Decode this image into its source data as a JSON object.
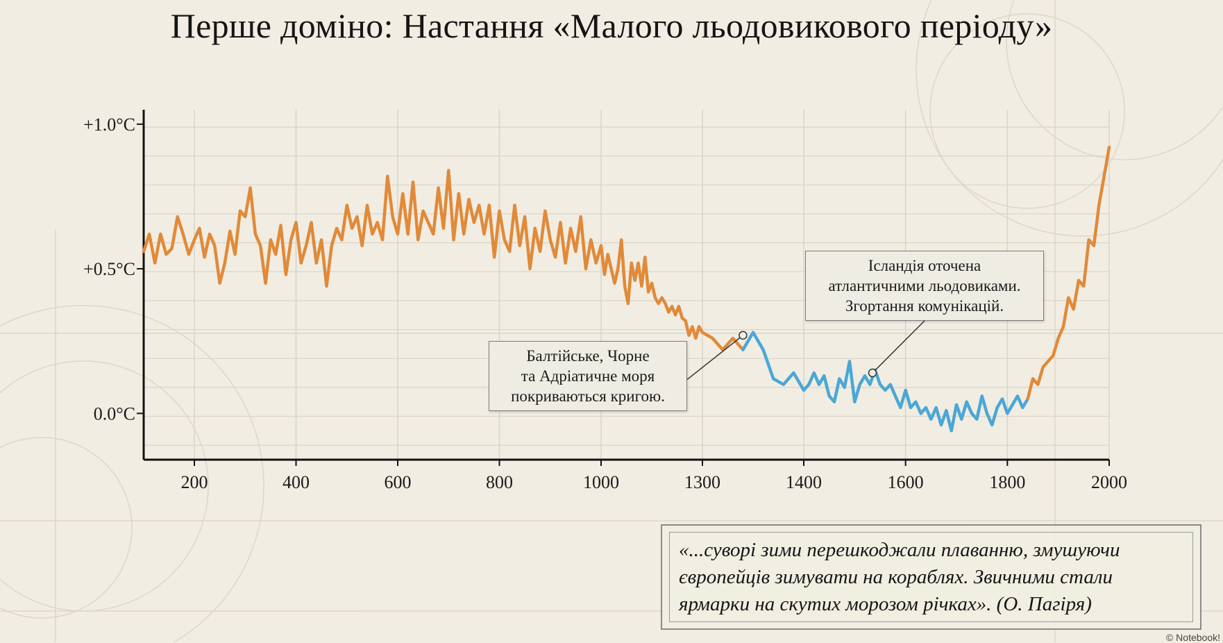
{
  "title": "Перше доміно: Настання «Малого льодовикового періоду»",
  "colors": {
    "warm": "#e08a3a",
    "cold": "#4aa7d6",
    "axis": "#111111",
    "grid": "#d9d4c7"
  },
  "chart_data": {
    "type": "line",
    "title": "Перше доміно: Настання «Малого льодовикового періоду»",
    "xlabel": "",
    "ylabel": "",
    "xlim": [
      110,
      2000
    ],
    "ylim": [
      -0.16,
      1.05
    ],
    "x_tick_labels": [
      "200",
      "400",
      "600",
      "800",
      "1000",
      "1300",
      "1400",
      "1600",
      "1800",
      "2000"
    ],
    "y_tick_labels": [
      "+1.0°C",
      "+0.5°C",
      "0.0°C"
    ],
    "y_tick_values": [
      1.0,
      0.5,
      0.0
    ],
    "grid": true,
    "legend": "none",
    "series": [
      {
        "color": "#e08a3a",
        "x": [
          110,
          120,
          130,
          140,
          150,
          160,
          170,
          180,
          190,
          200,
          210,
          220,
          230,
          240,
          250,
          260,
          270,
          280,
          290,
          300,
          310,
          320,
          330,
          340,
          350,
          360,
          370,
          380,
          390,
          400,
          410,
          420,
          430,
          440,
          450,
          460,
          470,
          480,
          490,
          500,
          510,
          520,
          530,
          540,
          550,
          560,
          570,
          580,
          590,
          600,
          610,
          620,
          630,
          640,
          650,
          660,
          670,
          680,
          690,
          700,
          710,
          720,
          730,
          740,
          750,
          760,
          770,
          780,
          790,
          800,
          810,
          820,
          830,
          840,
          850,
          860,
          870,
          880,
          890,
          900,
          910,
          920,
          930,
          940,
          950,
          960,
          970,
          980,
          990,
          1000,
          1010,
          1020,
          1030,
          1040,
          1050,
          1060,
          1070,
          1080,
          1090,
          1100,
          1110,
          1120,
          1130,
          1140,
          1150,
          1160,
          1170,
          1180,
          1190,
          1200,
          1210,
          1220,
          1230,
          1240,
          1250,
          1260,
          1270,
          1280,
          1290,
          1300,
          1310,
          1320,
          1330,
          1340
        ],
        "y": [
          0.56,
          0.62,
          0.52,
          0.62,
          0.55,
          0.57,
          0.68,
          0.62,
          0.55,
          0.6,
          0.64,
          0.54,
          0.62,
          0.58,
          0.45,
          0.52,
          0.63,
          0.55,
          0.7,
          0.68,
          0.78,
          0.62,
          0.58,
          0.45,
          0.6,
          0.55,
          0.65,
          0.48,
          0.6,
          0.66,
          0.52,
          0.58,
          0.66,
          0.52,
          0.6,
          0.44,
          0.58,
          0.64,
          0.6,
          0.72,
          0.64,
          0.68,
          0.58,
          0.72,
          0.62,
          0.66,
          0.6,
          0.82,
          0.68,
          0.62,
          0.76,
          0.62,
          0.8,
          0.6,
          0.7,
          0.66,
          0.62,
          0.78,
          0.64,
          0.84,
          0.6,
          0.76,
          0.62,
          0.74,
          0.66,
          0.72,
          0.62,
          0.72,
          0.54,
          0.7,
          0.6,
          0.56,
          0.72,
          0.58,
          0.68,
          0.5,
          0.64,
          0.56,
          0.7,
          0.6,
          0.54,
          0.66,
          0.52,
          0.64,
          0.56,
          0.68,
          0.5,
          0.6,
          0.52,
          0.58,
          0.48,
          0.55,
          0.5,
          0.45,
          0.5,
          0.6,
          0.44,
          0.38,
          0.52,
          0.46,
          0.52,
          0.44,
          0.54,
          0.42,
          0.45,
          0.4,
          0.38,
          0.4,
          0.38,
          0.35,
          0.37,
          0.34,
          0.37,
          0.33,
          0.32,
          0.27,
          0.3,
          0.26,
          0.3,
          0.28,
          0.26,
          0.22,
          0.26,
          0.22
        ]
      },
      {
        "color": "#4aa7d6",
        "x": [
          1340,
          1350,
          1360,
          1370,
          1380,
          1390,
          1400,
          1410,
          1420,
          1430,
          1440,
          1450,
          1460,
          1470,
          1480,
          1490,
          1500,
          1510,
          1520,
          1530,
          1540,
          1550,
          1560,
          1570,
          1580,
          1590,
          1600,
          1610,
          1620,
          1630,
          1640,
          1650,
          1660,
          1670,
          1680,
          1690,
          1700,
          1710,
          1720,
          1730,
          1740,
          1750,
          1760,
          1770,
          1780,
          1790,
          1800,
          1810,
          1820,
          1830,
          1840
        ],
        "y": [
          0.22,
          0.28,
          0.22,
          0.12,
          0.1,
          0.14,
          0.08,
          0.1,
          0.14,
          0.1,
          0.13,
          0.06,
          0.04,
          0.12,
          0.09,
          0.18,
          0.04,
          0.1,
          0.13,
          0.1,
          0.15,
          0.1,
          0.08,
          0.1,
          0.06,
          0.02,
          0.08,
          0.02,
          0.04,
          0.0,
          0.02,
          -0.02,
          0.02,
          -0.04,
          0.01,
          -0.06,
          0.03,
          -0.02,
          0.04,
          0.0,
          -0.02,
          0.06,
          0.0,
          -0.04,
          0.02,
          0.05,
          0.0,
          0.03,
          0.06,
          0.02,
          0.05
        ]
      },
      {
        "color": "#e08a3a",
        "x": [
          1840,
          1850,
          1860,
          1870,
          1880,
          1890,
          1900,
          1910,
          1920,
          1930,
          1940,
          1950,
          1960,
          1970,
          1980,
          1990,
          2000
        ],
        "y": [
          0.05,
          0.12,
          0.1,
          0.16,
          0.18,
          0.2,
          0.26,
          0.3,
          0.4,
          0.36,
          0.46,
          0.44,
          0.6,
          0.58,
          0.72,
          0.82,
          0.92
        ]
      }
    ]
  },
  "annotations": [
    {
      "lines": [
        "Балтійське, Чорне",
        "та Адріатичне моря",
        "покриваються кригою."
      ],
      "anchor": {
        "x": 1340,
        "y": 0.27
      }
    },
    {
      "lines": [
        "Ісландія оточена",
        "атлантичними льодовиками.",
        "Згортання комунікацій."
      ],
      "anchor": {
        "x": 1535,
        "y": 0.14
      }
    }
  ],
  "quote": {
    "lines": [
      "«...суворі зими перешкоджали плаванню, змушуючи",
      "європейців зимувати на кораблях. Звичними стали",
      "ярмарки на скутих морозом річках». (О. Пагіря)"
    ]
  },
  "copyright": "© Notebook!"
}
